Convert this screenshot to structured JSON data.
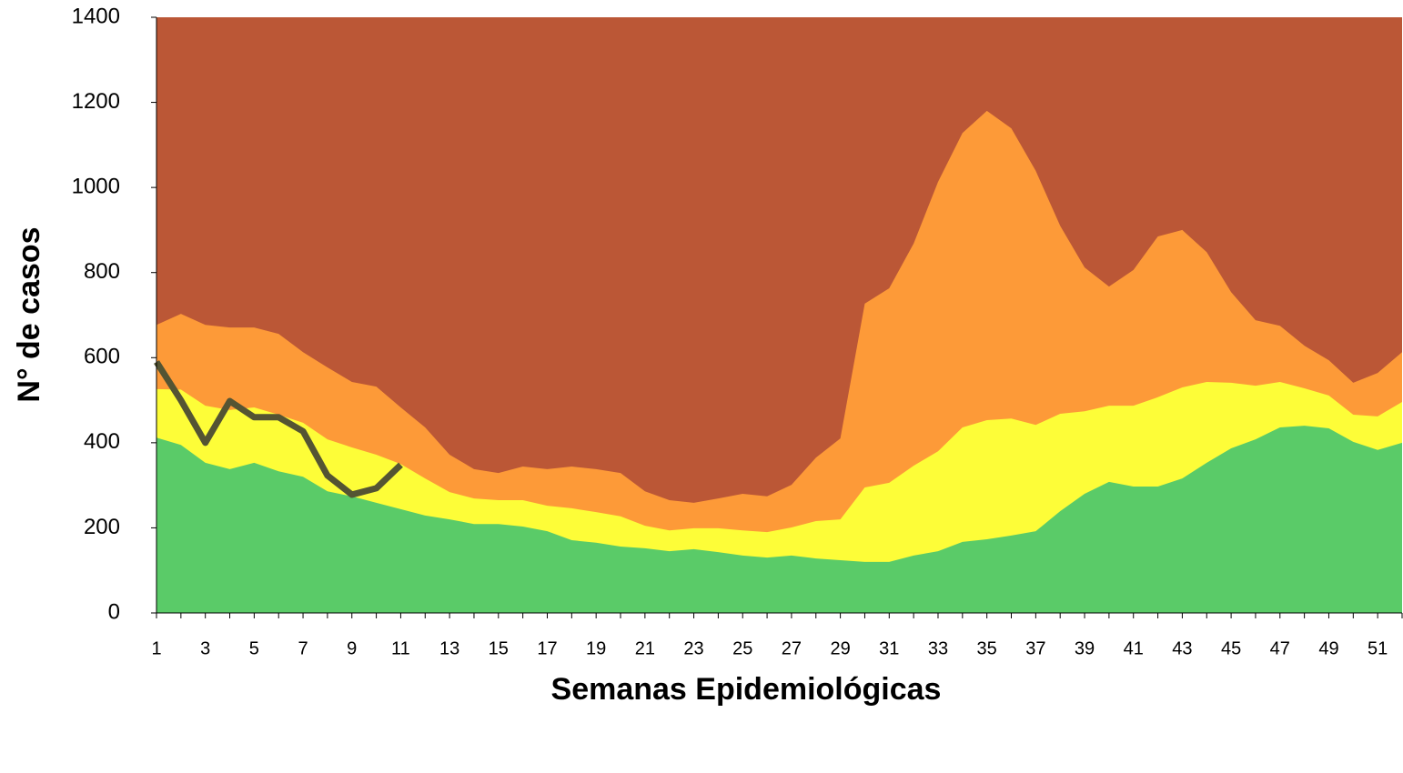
{
  "chart_data": {
    "type": "area",
    "x_label": "Semanas Epidemiológicas",
    "y_label": "N° de casos",
    "plot_background": "#bb5736",
    "categories": [
      1,
      null,
      3,
      null,
      5,
      null,
      7,
      null,
      9,
      null,
      11,
      null,
      13,
      null,
      15,
      null,
      17,
      null,
      19,
      null,
      21,
      null,
      23,
      null,
      25,
      null,
      27,
      null,
      29,
      null,
      31,
      null,
      33,
      null,
      35,
      null,
      37,
      null,
      39,
      null,
      41,
      null,
      43,
      null,
      45,
      null,
      47,
      null,
      49,
      null,
      51,
      null
    ],
    "ylim": [
      0,
      1400
    ],
    "yticks": [
      0,
      200,
      400,
      600,
      800,
      1000,
      1200,
      1400
    ],
    "series": [
      {
        "type": "area",
        "color": "#fd9a38",
        "values": [
          677,
          703,
          677,
          671,
          671,
          656,
          613,
          577,
          543,
          532,
          483,
          436,
          372,
          338,
          329,
          344,
          338,
          344,
          338,
          329,
          286,
          265,
          259,
          269,
          280,
          274,
          301,
          365,
          410,
          727,
          763,
          868,
          1013,
          1128,
          1180,
          1139,
          1039,
          910,
          812,
          767,
          806,
          885,
          900,
          848,
          754,
          688,
          675,
          628,
          594,
          541,
          564,
          613
        ]
      },
      {
        "type": "area",
        "color": "#fdfd38",
        "values": [
          526,
          525,
          487,
          477,
          483,
          466,
          447,
          408,
          389,
          372,
          350,
          316,
          284,
          269,
          265,
          265,
          252,
          246,
          237,
          227,
          205,
          194,
          199,
          199,
          194,
          190,
          201,
          216,
          220,
          295,
          306,
          346,
          380,
          436,
          453,
          457,
          442,
          468,
          474,
          487,
          487,
          507,
          530,
          543,
          541,
          534,
          543,
          528,
          511,
          466,
          462,
          496
        ]
      },
      {
        "type": "area",
        "color": "#5acb68",
        "values": [
          412,
          395,
          353,
          338,
          353,
          333,
          320,
          286,
          274,
          259,
          244,
          229,
          220,
          209,
          209,
          203,
          192,
          171,
          165,
          156,
          152,
          145,
          150,
          143,
          135,
          130,
          135,
          128,
          124,
          120,
          120,
          135,
          145,
          167,
          173,
          182,
          192,
          239,
          280,
          308,
          297,
          297,
          316,
          353,
          387,
          408,
          436,
          440,
          434,
          402,
          383,
          400
        ]
      },
      {
        "type": "line",
        "color": "#545433",
        "values": [
          590,
          500,
          400,
          498,
          460,
          460,
          427,
          323,
          278,
          293,
          348,
          null,
          null,
          null,
          null,
          null,
          null,
          null,
          null,
          null,
          null,
          null,
          null,
          null,
          null,
          null,
          null,
          null,
          null,
          null,
          null,
          null,
          null,
          null,
          null,
          null,
          null,
          null,
          null,
          null,
          null,
          null,
          null,
          null,
          null,
          null,
          null,
          null,
          null,
          null,
          null,
          null
        ]
      }
    ]
  }
}
